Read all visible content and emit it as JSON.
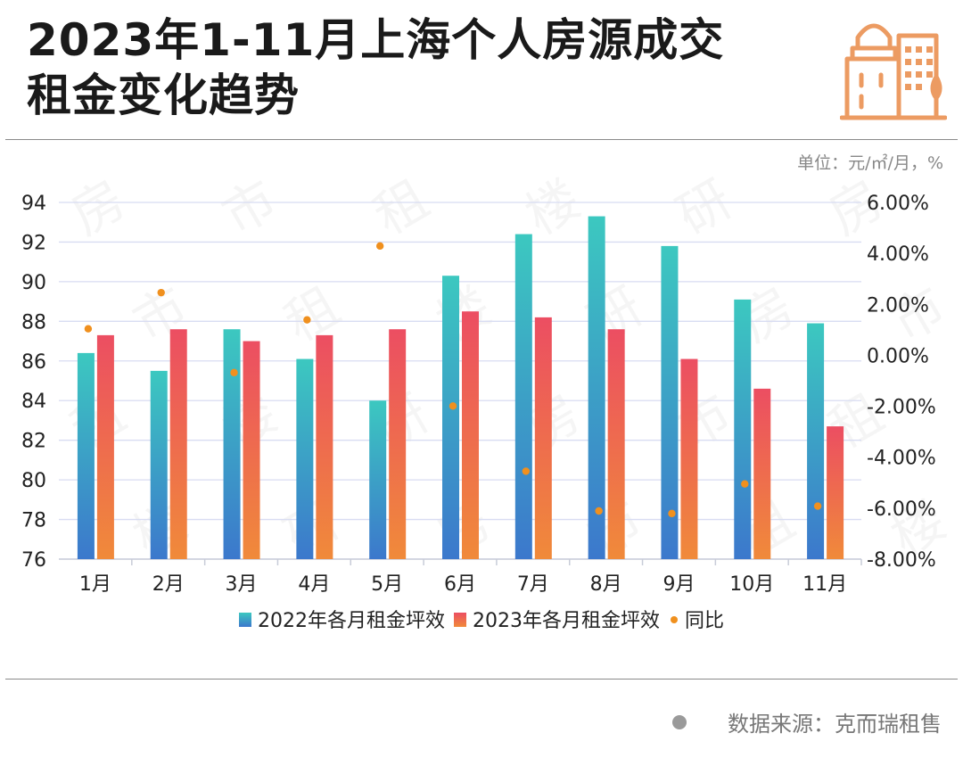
{
  "title_line1": "2023年1-11月上海个人房源成交",
  "title_line2": "租金变化趋势",
  "unit_label": "单位：元/㎡/月，%",
  "source_label": "数据来源：克而瑞租售",
  "watermark_chars": [
    "房",
    "市",
    "租",
    "楼",
    "研"
  ],
  "colors": {
    "bar2022_top": "#3cc8c0",
    "bar2022_bottom": "#3c78cc",
    "bar2023_top": "#ec4e62",
    "bar2023_bottom": "#f08a3a",
    "yoy_dot": "#f0901e",
    "gridline": "#d8dcf2",
    "logo": "#ec9b62"
  },
  "chart_data": {
    "type": "bar",
    "categories": [
      "1月",
      "2月",
      "3月",
      "4月",
      "5月",
      "6月",
      "7月",
      "8月",
      "9月",
      "10月",
      "11月"
    ],
    "series": [
      {
        "name": "2022年各月租金坪效",
        "type": "bar",
        "axis": "left",
        "values": [
          86.4,
          85.5,
          87.6,
          86.1,
          84.0,
          90.3,
          92.4,
          93.3,
          91.8,
          89.1,
          87.9
        ]
      },
      {
        "name": "2023年各月租金坪效",
        "type": "bar",
        "axis": "left",
        "values": [
          87.3,
          87.6,
          87.0,
          87.3,
          87.6,
          88.5,
          88.2,
          87.6,
          86.1,
          84.6,
          82.7
        ]
      },
      {
        "name": "同比",
        "type": "scatter",
        "axis": "right",
        "values": [
          1.04,
          2.46,
          -0.68,
          1.39,
          4.29,
          -1.99,
          -4.55,
          -6.11,
          -6.21,
          -5.05,
          -5.92
        ]
      }
    ],
    "y_left": {
      "min": 76,
      "max": 94,
      "ticks": [
        "76",
        "78",
        "80",
        "82",
        "84",
        "86",
        "88",
        "90",
        "92",
        "94"
      ]
    },
    "y_right": {
      "min": -8,
      "max": 6,
      "ticks": [
        "-8.00%",
        "-6.00%",
        "-4.00%",
        "-2.00%",
        "0.00%",
        "2.00%",
        "4.00%",
        "6.00%"
      ]
    },
    "grid": true,
    "legend": {
      "position": "bottom-center",
      "entries": [
        "2022年各月租金坪效",
        "2023年各月租金坪效",
        "同比"
      ]
    }
  }
}
